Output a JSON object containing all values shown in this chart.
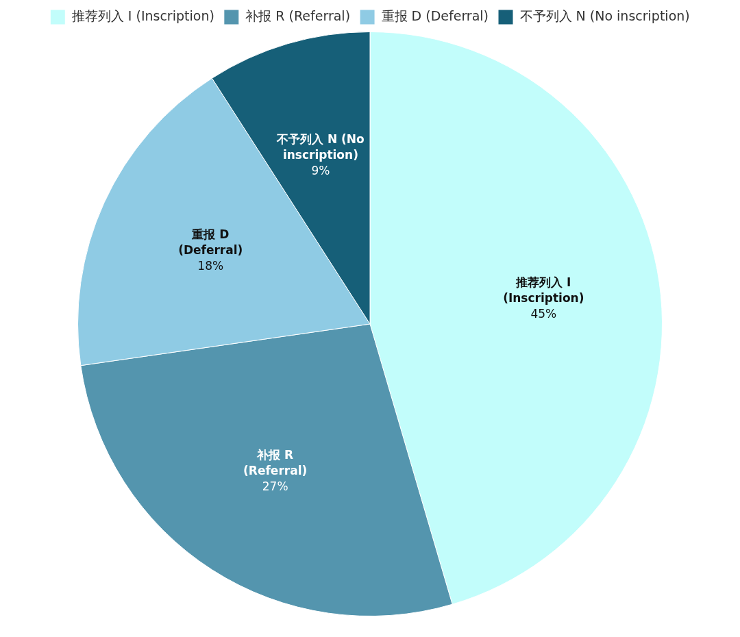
{
  "chart_data": {
    "type": "pie",
    "categories": [
      "推荐列入 I (Inscription)",
      "补报 R (Referral)",
      "重报 D (Deferral)",
      "不予列入 N (No inscription)"
    ],
    "values": [
      45,
      27,
      18,
      9
    ],
    "value_labels": [
      "45%",
      "27%",
      "18%",
      "9%"
    ],
    "colors": [
      "#c2fdfb",
      "#5495ae",
      "#8fcbe4",
      "#165f78"
    ],
    "legend": "top"
  }
}
